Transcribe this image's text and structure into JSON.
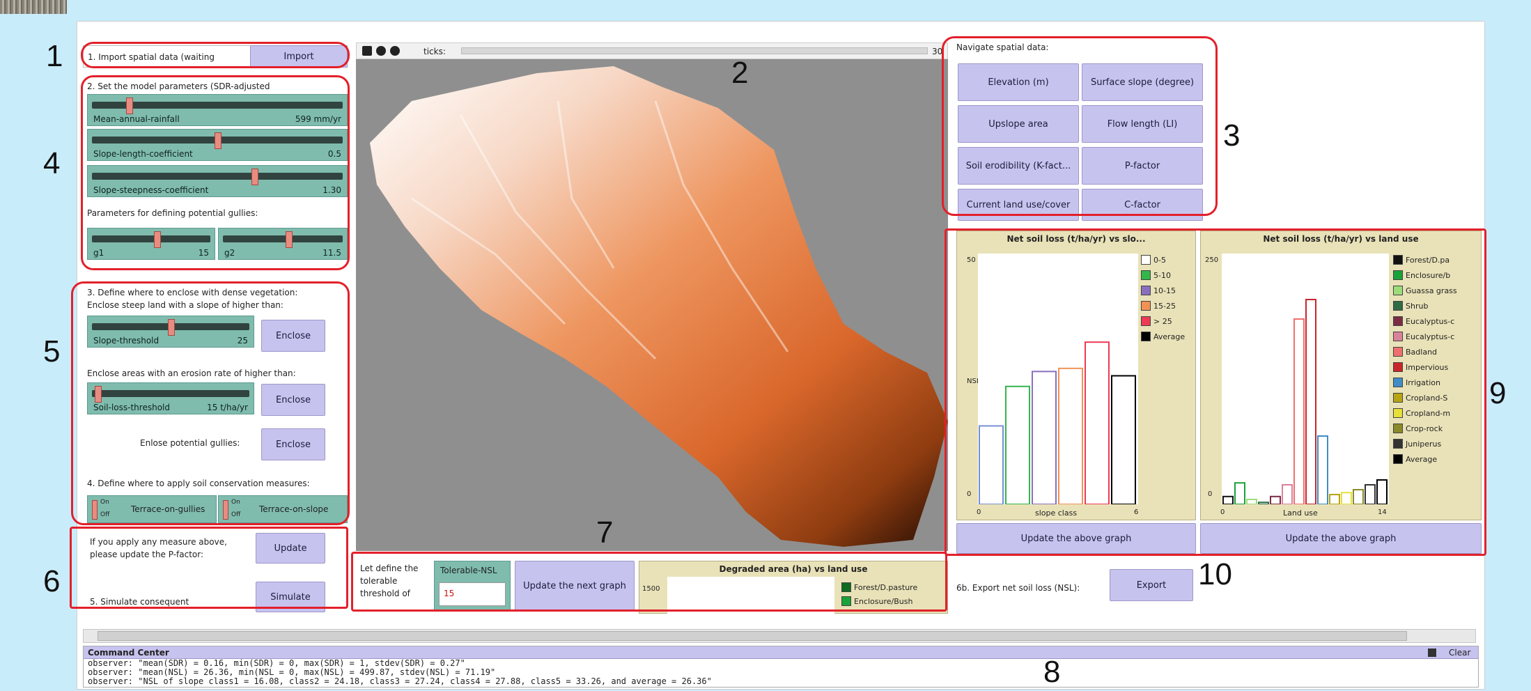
{
  "left": {
    "import_label": "1. Import spatial data (waiting",
    "import_button": "Import",
    "params_label": "2. Set the model parameters (SDR-adjusted",
    "sliders": [
      {
        "label": "Mean-annual-rainfall",
        "value": "599 mm/yr",
        "fraction": 0.14
      },
      {
        "label": "Slope-length-coefficient",
        "value": "0.5",
        "fraction": 0.5
      },
      {
        "label": "Slope-steepness-coefficient",
        "value": "1.30",
        "fraction": 0.65
      }
    ],
    "gully_label": "Parameters for defining potential gullies:",
    "gully_sliders": [
      {
        "label": "g1",
        "value": "15",
        "fraction": 0.55
      },
      {
        "label": "g2",
        "value": "11.5",
        "fraction": 0.55
      }
    ],
    "enclose_label": "3. Define where to enclose with dense vegetation:",
    "steep_label": "Enclose steep land with a slope of higher than:",
    "slope_threshold": {
      "label": "Slope-threshold",
      "value": "25",
      "fraction": 0.5
    },
    "enclose_button": "Enclose",
    "erosion_label": "Enclose areas with an erosion rate of higher than:",
    "soil_threshold": {
      "label": "Soil-loss-threshold",
      "value": "15 t/ha/yr",
      "fraction": 0.02
    },
    "gullies_label": "Enlose potential gullies:",
    "conservation_label": "4. Define where to apply soil conservation measures:",
    "switch_on": "On",
    "switch_off": "Off",
    "terrace_gullies": "Terrace-on-gullies",
    "terrace_slope": "Terrace-on-slope",
    "update_text": "If you apply any measure above, please update the P-factor:",
    "update_button": "Update",
    "simulate_text": "5. Simulate consequent",
    "simulate_button": "Simulate"
  },
  "view": {
    "speed_label": "ticks:",
    "zoom_value": "30"
  },
  "navigate": {
    "label": "Navigate spatial data:",
    "buttons": [
      "Elevation (m)",
      "Surface slope (degree)",
      "Upslope area",
      "Flow length (LI)",
      "Soil erodibility (K-fact...",
      "P-factor",
      "Current land use/cover",
      "C-factor"
    ]
  },
  "plot1": {
    "title": "Net soil loss (t/ha/yr) vs slo...",
    "ymax": "50",
    "ymin": "0",
    "xmin": "0",
    "xmax": "6",
    "xlabel": "slope class",
    "ylabel": "NSL",
    "update_button": "Update the above graph"
  },
  "plot2": {
    "title": "Net soil loss (t/ha/yr) vs land use",
    "ymax": "250",
    "ymin": "0",
    "xmin": "0",
    "xmax": "14",
    "xlabel": "Land use",
    "update_button": "Update the above graph"
  },
  "bottom": {
    "tolerable_text": "Let define the tolerable threshold of",
    "tolerable_label": "Tolerable-NSL",
    "tolerable_value": "15",
    "update_next": "Update the next graph",
    "degraded_title": "Degraded area (ha) vs land use",
    "degraded_ymax": "1500",
    "degraded_legend": [
      "Forest/D.pasture",
      "Enclosure/Bush"
    ],
    "export_label": "6b. Export net soil loss (NSL):",
    "export_button": "Export"
  },
  "command": {
    "title": "Command Center",
    "clear": "Clear",
    "lines": [
      "observer: \"mean(SDR) = 0.16, min(SDR) = 0, max(SDR) = 1, stdev(SDR) = 0.27\"",
      "observer: \"mean(NSL) = 26.36, min(NSL = 0, max(NSL) = 499.87, stdev(NSL) = 71.19\"",
      "observer: \"NSL of slope class1 = 16.08, class2 = 24.18, class3 = 27.24, class4 = 27.88, class5 = 33.26, and average = 26.36\""
    ]
  },
  "callouts": [
    "1",
    "2",
    "3",
    "4",
    "5",
    "6",
    "7",
    "8",
    "9",
    "10"
  ],
  "chart_data": [
    {
      "type": "bar",
      "title": "Net soil loss (t/ha/yr) vs slo...",
      "xlabel": "slope class",
      "ylabel": "NSL",
      "ylim": [
        0,
        50
      ],
      "xlim": [
        0,
        6
      ],
      "categories": [
        "0-5",
        "5-10",
        "10-15",
        "15-25",
        "> 25",
        "Average"
      ],
      "values": [
        16.08,
        24.18,
        27.24,
        27.88,
        33.26,
        26.36
      ],
      "colors": [
        "#ffffff",
        "#33b64a",
        "#8a6fbf",
        "#f19254",
        "#ee3a55",
        "#000000"
      ],
      "legend": "right"
    },
    {
      "type": "bar",
      "title": "Net soil loss (t/ha/yr) vs land use",
      "xlabel": "Land use",
      "ylim": [
        0,
        250
      ],
      "xlim": [
        0,
        14
      ],
      "categories": [
        "Forest/D.pa",
        "Enclosure/b",
        "Guassa grass",
        "Shrub",
        "Eucalyptus-c",
        "Eucalyptus-c",
        "Badland",
        "Impervious",
        "Irrigation",
        "Cropland-S",
        "Cropland-m",
        "Crop-rock",
        "Juniperus",
        "Average"
      ],
      "values": [
        8,
        22,
        5,
        2,
        8,
        20,
        190,
        210,
        70,
        10,
        12,
        15,
        20,
        25
      ],
      "colors": [
        "#111111",
        "#1aa23a",
        "#9ddc7a",
        "#2f6b45",
        "#7a2c45",
        "#d9839a",
        "#ef6f6f",
        "#c7262a",
        "#3f8cc6",
        "#b7a414",
        "#e7e03a",
        "#8a8a2a",
        "#333333",
        "#000000"
      ],
      "legend": "right"
    }
  ]
}
